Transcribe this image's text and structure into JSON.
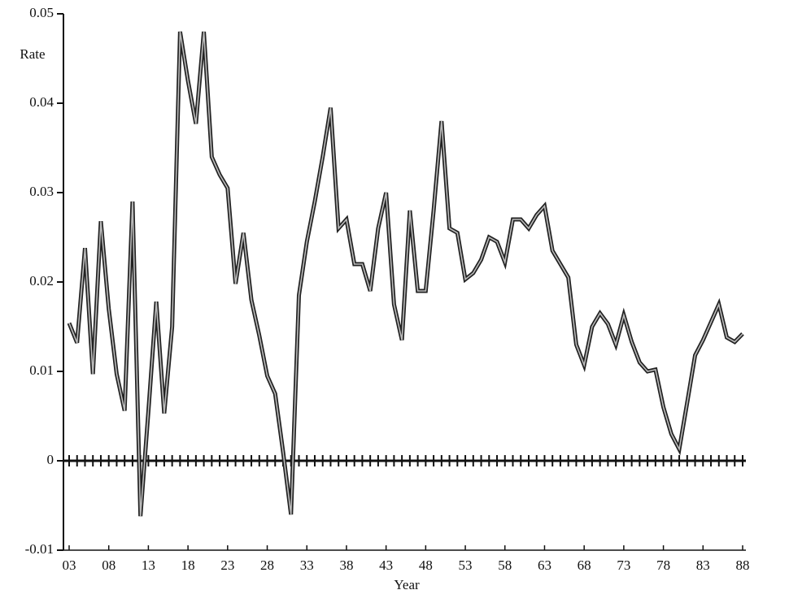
{
  "chart_data": {
    "type": "line",
    "y_label": "Rate",
    "x_label": "Year",
    "x": [
      3,
      4,
      5,
      6,
      7,
      8,
      9,
      10,
      11,
      12,
      13,
      14,
      15,
      16,
      17,
      18,
      19,
      20,
      21,
      22,
      23,
      24,
      25,
      26,
      27,
      28,
      29,
      30,
      31,
      32,
      33,
      34,
      35,
      36,
      37,
      38,
      39,
      40,
      41,
      42,
      43,
      44,
      45,
      46,
      47,
      48,
      49,
      50,
      51,
      52,
      53,
      54,
      55,
      56,
      57,
      58,
      59,
      60,
      61,
      62,
      63,
      64,
      65,
      66,
      67,
      68,
      69,
      70,
      71,
      72,
      73,
      74,
      75,
      76,
      77,
      78,
      79,
      80,
      81,
      82,
      83,
      84,
      85,
      86,
      87,
      88
    ],
    "series": [
      {
        "color": "#222222",
        "values": [
          0.0154,
          0.0132,
          0.0238,
          0.0097,
          0.0268,
          0.017,
          0.0097,
          0.0056,
          0.029,
          -0.0062,
          0.0055,
          0.0178,
          0.0053,
          0.015,
          0.048,
          0.0425,
          0.0377,
          0.048,
          0.034,
          0.032,
          0.0305,
          0.0198,
          0.0255,
          0.018,
          0.014,
          0.0095,
          0.0075,
          0.001,
          -0.006,
          0.0185,
          0.0245,
          0.029,
          0.034,
          0.0395,
          0.026,
          0.027,
          0.022,
          0.022,
          0.019,
          0.026,
          0.03,
          0.0175,
          0.0135,
          0.028,
          0.019,
          0.019,
          0.028,
          0.038,
          0.026,
          0.0255,
          0.0203,
          0.021,
          0.0225,
          0.025,
          0.0245,
          0.0222,
          0.027,
          0.027,
          0.026,
          0.0275,
          0.0285,
          0.0235,
          0.022,
          0.0205,
          0.013,
          0.0107,
          0.015,
          0.0165,
          0.0153,
          0.013,
          0.0163,
          0.0133,
          0.011,
          0.01,
          0.0102,
          0.006,
          0.003,
          0.0013,
          0.0065,
          0.0118,
          0.0135,
          0.0155,
          0.0175,
          0.0138,
          0.0133,
          0.0142
        ]
      }
    ],
    "xlim": [
      3,
      88
    ],
    "ylim": [
      -0.01,
      0.05
    ],
    "xticks": [
      {
        "value": 3,
        "label": "03"
      },
      {
        "value": 8,
        "label": "08"
      },
      13,
      18,
      23,
      28,
      33,
      38,
      43,
      48,
      53,
      58,
      63,
      68,
      73,
      78,
      83,
      88
    ],
    "yticks": [
      -0.01,
      0,
      0.01,
      0.02,
      0.03,
      0.04,
      0.05
    ]
  }
}
